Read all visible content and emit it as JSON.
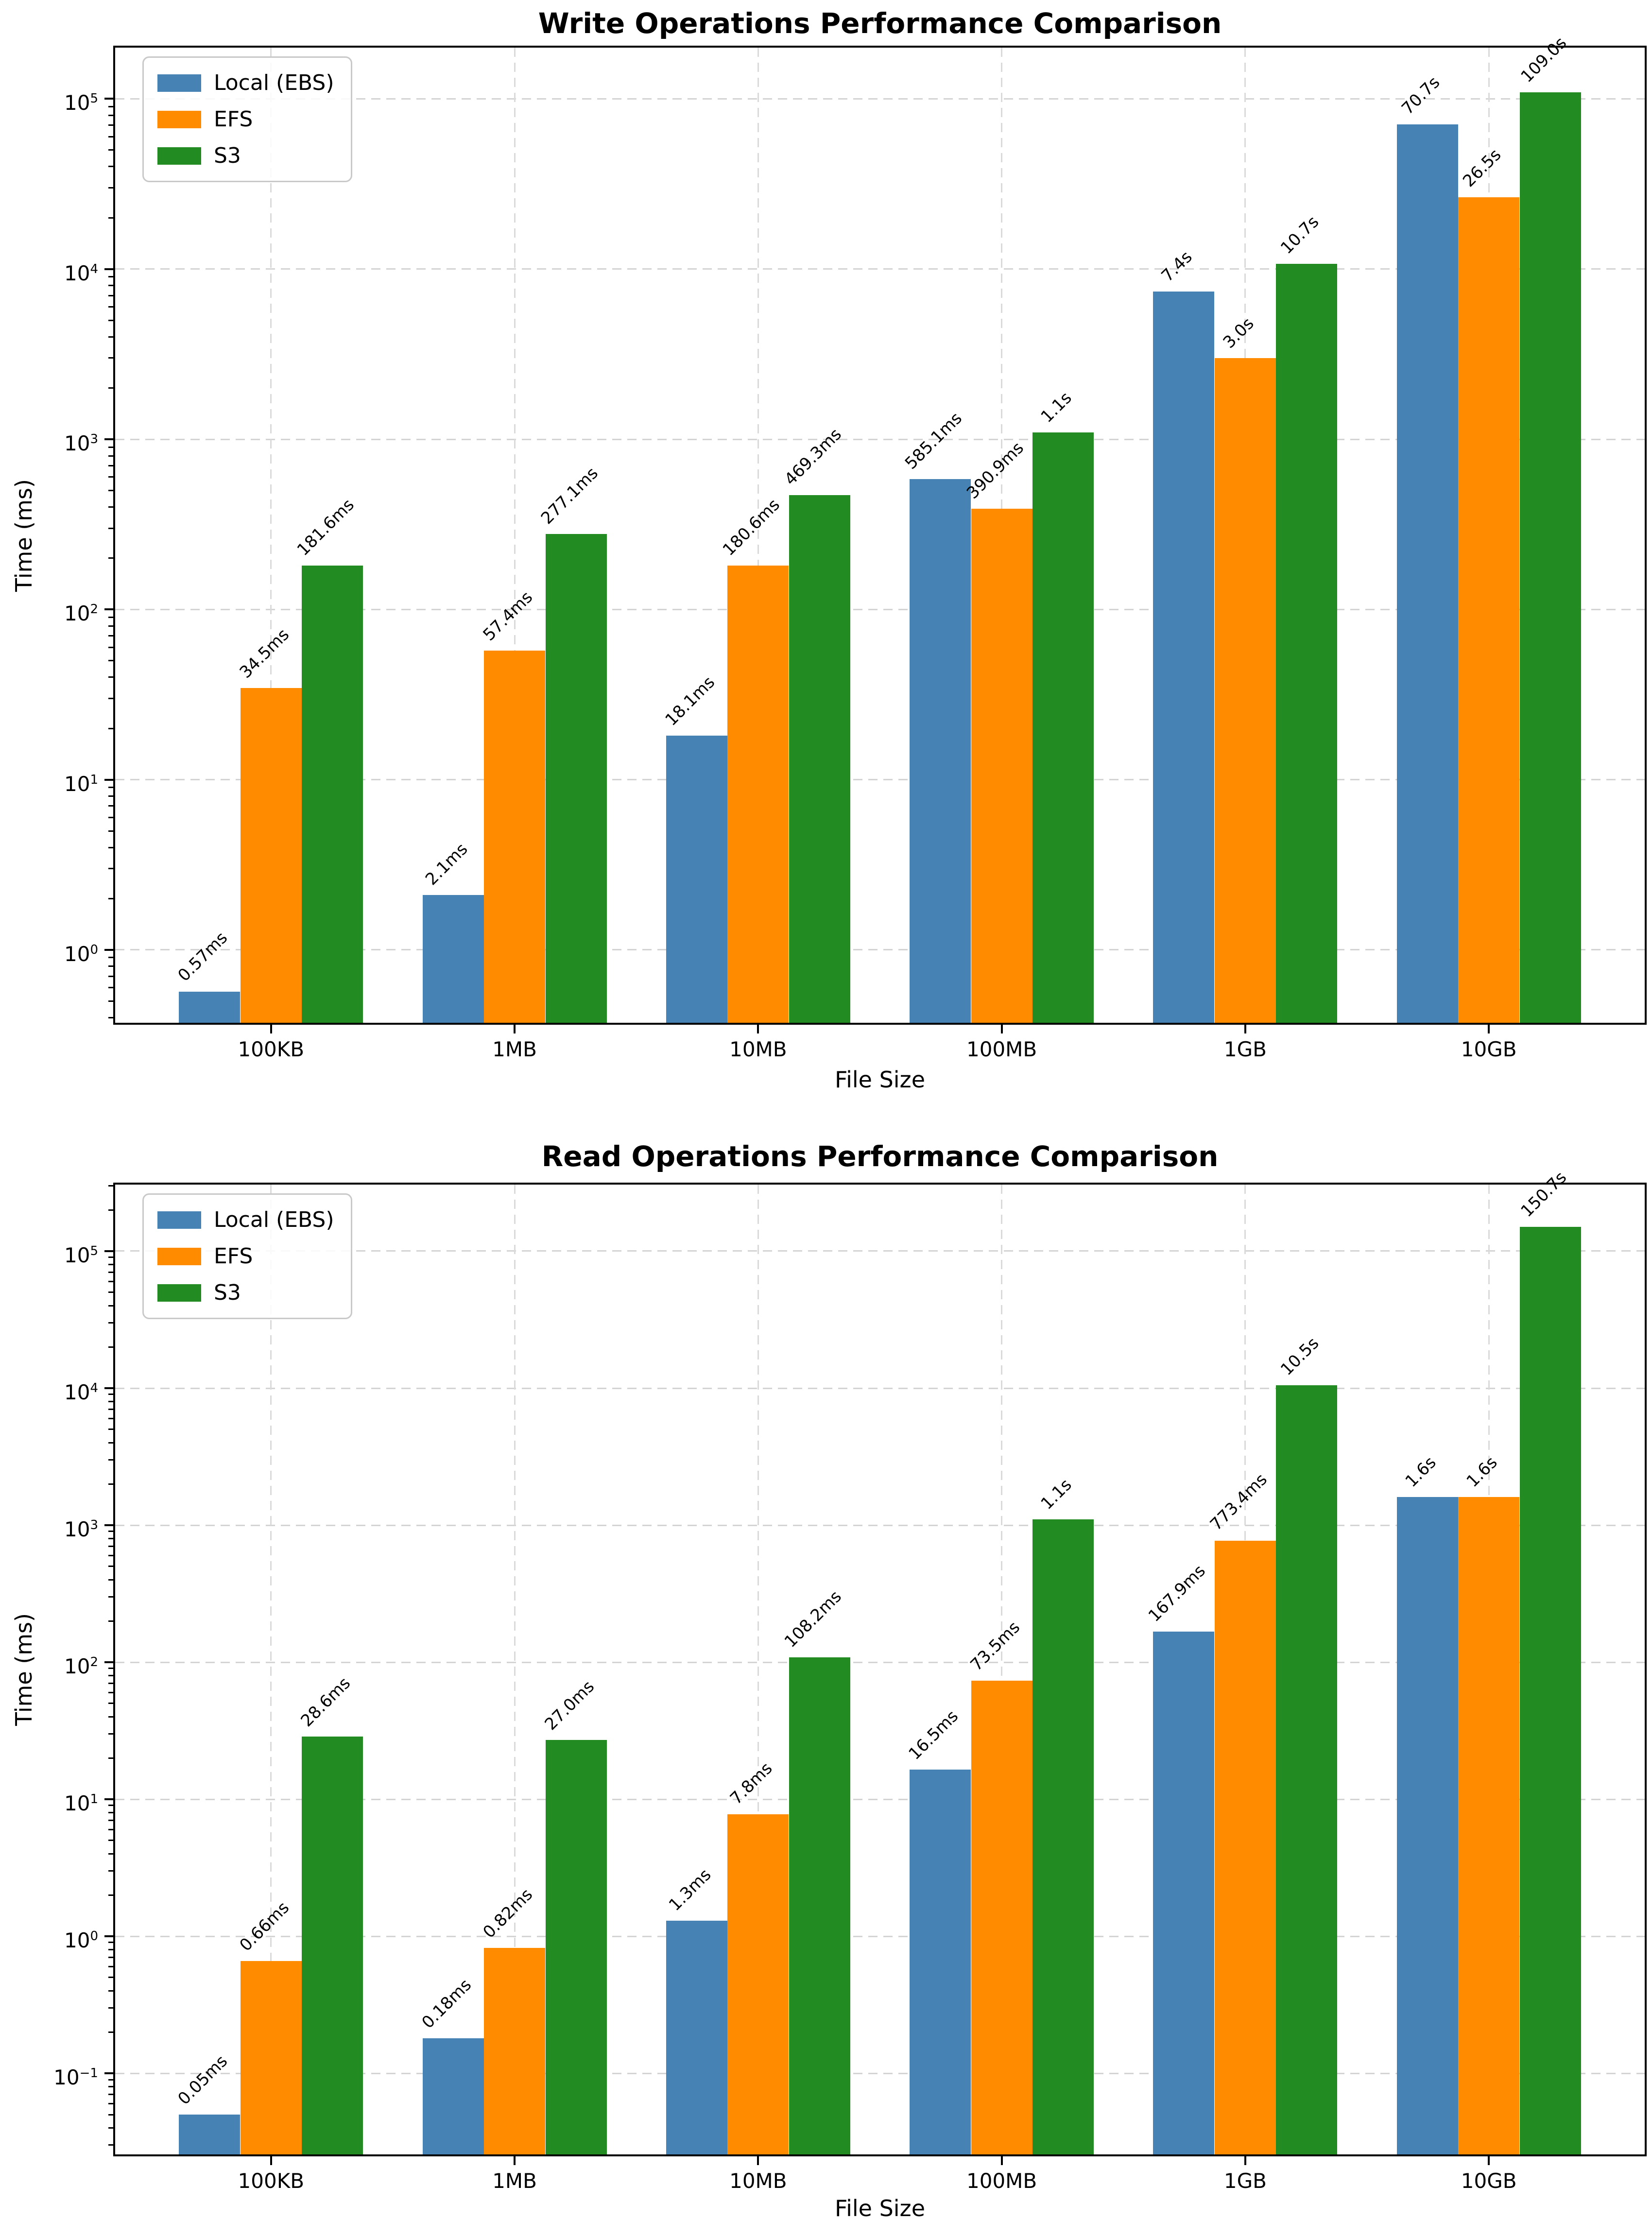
{
  "figure": {
    "background": "#ffffff"
  },
  "chart_data": [
    {
      "type": "bar",
      "title": "Write Operations Performance Comparison",
      "xlabel": "File Size",
      "ylabel": "Time (ms)",
      "yscale": "log",
      "grid": true,
      "legend_position": "upper left",
      "categories": [
        "100KB",
        "1MB",
        "10MB",
        "100MB",
        "1GB",
        "10GB"
      ],
      "y_tick_exponents": [
        0,
        1,
        2,
        3,
        4,
        5
      ],
      "ylim": [
        0.373,
        200000
      ],
      "series": [
        {
          "name": "Local (EBS)",
          "color": "#4682b4",
          "values_ms": [
            0.57,
            2.1,
            18.1,
            585.1,
            7400,
            70700
          ],
          "labels": [
            "0.57ms",
            "2.1ms",
            "18.1ms",
            "585.1ms",
            "7.4s",
            "70.7s"
          ]
        },
        {
          "name": "EFS",
          "color": "#ff8c00",
          "values_ms": [
            34.5,
            57.4,
            180.6,
            390.9,
            3000,
            26500
          ],
          "labels": [
            "34.5ms",
            "57.4ms",
            "180.6ms",
            "390.9ms",
            "3.0s",
            "26.5s"
          ]
        },
        {
          "name": "S3",
          "color": "#228b22",
          "values_ms": [
            181.6,
            277.1,
            469.3,
            1100,
            10700,
            109000
          ],
          "labels": [
            "181.6ms",
            "277.1ms",
            "469.3ms",
            "1.1s",
            "10.7s",
            "109.0s"
          ]
        }
      ]
    },
    {
      "type": "bar",
      "title": "Read Operations Performance Comparison",
      "xlabel": "File Size",
      "ylabel": "Time (ms)",
      "yscale": "log",
      "grid": true,
      "legend_position": "upper left",
      "categories": [
        "100KB",
        "1MB",
        "10MB",
        "100MB",
        "1GB",
        "10GB"
      ],
      "y_tick_exponents": [
        -1,
        0,
        1,
        2,
        3,
        4,
        5
      ],
      "ylim": [
        0.0256,
        306000
      ],
      "series": [
        {
          "name": "Local (EBS)",
          "color": "#4682b4",
          "values_ms": [
            0.05,
            0.18,
            1.3,
            16.5,
            167.9,
            1600
          ],
          "labels": [
            "0.05ms",
            "0.18ms",
            "1.3ms",
            "16.5ms",
            "167.9ms",
            "1.6s"
          ]
        },
        {
          "name": "EFS",
          "color": "#ff8c00",
          "values_ms": [
            0.66,
            0.82,
            7.8,
            73.5,
            773.4,
            1600
          ],
          "labels": [
            "0.66ms",
            "0.82ms",
            "7.8ms",
            "73.5ms",
            "773.4ms",
            "1.6s"
          ]
        },
        {
          "name": "S3",
          "color": "#228b22",
          "values_ms": [
            28.6,
            27.0,
            108.2,
            1100,
            10500,
            150700
          ],
          "labels": [
            "28.6ms",
            "27.0ms",
            "108.2ms",
            "1.1s",
            "10.5s",
            "150.7s"
          ]
        }
      ]
    }
  ]
}
